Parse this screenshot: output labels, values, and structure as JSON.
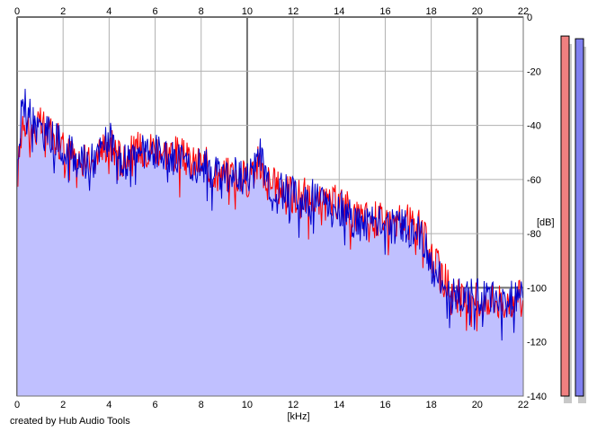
{
  "footer": {
    "credit": "created by Hub Audio Tools"
  },
  "colors": {
    "left_channel": "#ff0000",
    "right_channel": "#0000cc",
    "fill": "#c0c0ff",
    "grid": "#b0b0b0",
    "major_grid": "#707070",
    "meter_left": "#f08080",
    "meter_right": "#8080f0"
  },
  "chart_data": {
    "type": "line",
    "title": "",
    "xlabel": "[kHz]",
    "ylabel": "[dB]",
    "x_unit": "kHz",
    "y_unit": "dB",
    "xlim": [
      0,
      22
    ],
    "ylim": [
      -140,
      0
    ],
    "x_ticks": [
      "0",
      "2",
      "4",
      "6",
      "8",
      "10",
      "12",
      "14",
      "16",
      "18",
      "20",
      "22"
    ],
    "y_ticks": [
      "0",
      "-20",
      "-40",
      "-60",
      "-80",
      "-100",
      "-120",
      "-140"
    ],
    "grid": true,
    "legend": "none",
    "series": [
      {
        "channel": "left",
        "color": "#ff0000",
        "x": [
          0,
          0.25,
          0.5,
          0.75,
          1,
          1.5,
          2,
          2.5,
          3,
          3.5,
          4,
          4.5,
          5,
          5.5,
          6,
          6.5,
          7,
          7.5,
          8,
          8.5,
          9,
          9.5,
          10,
          10.5,
          11,
          11.5,
          12,
          12.5,
          13,
          13.5,
          14,
          14.5,
          15,
          15.5,
          16,
          16.5,
          17,
          17.5,
          18,
          18.5,
          19,
          19.5,
          20,
          20.5,
          21,
          21.5,
          22
        ],
        "y": [
          -60,
          -36,
          -40,
          -42,
          -40,
          -42,
          -48,
          -52,
          -54,
          -50,
          -46,
          -52,
          -50,
          -48,
          -48,
          -50,
          -50,
          -54,
          -54,
          -56,
          -58,
          -58,
          -60,
          -54,
          -62,
          -63,
          -66,
          -66,
          -68,
          -70,
          -68,
          -72,
          -74,
          -74,
          -74,
          -76,
          -76,
          -78,
          -88,
          -96,
          -102,
          -106,
          -104,
          -104,
          -105,
          -104,
          -104
        ]
      },
      {
        "channel": "right",
        "color": "#0000cc",
        "x": [
          0,
          0.25,
          0.5,
          0.75,
          1,
          1.5,
          2,
          2.5,
          3,
          3.5,
          4,
          4.5,
          5,
          5.5,
          6,
          6.5,
          7,
          7.5,
          8,
          8.5,
          9,
          9.5,
          10,
          10.5,
          11,
          11.5,
          12,
          12.5,
          13,
          13.5,
          14,
          14.5,
          15,
          15.5,
          16,
          16.5,
          17,
          17.5,
          18,
          18.5,
          19,
          19.5,
          20,
          20.5,
          21,
          21.5,
          22
        ],
        "y": [
          -58,
          -28,
          -36,
          -40,
          -42,
          -44,
          -48,
          -52,
          -54,
          -52,
          -44,
          -54,
          -52,
          -50,
          -50,
          -52,
          -52,
          -54,
          -55,
          -56,
          -58,
          -58,
          -60,
          -50,
          -62,
          -64,
          -66,
          -68,
          -66,
          -70,
          -68,
          -74,
          -76,
          -76,
          -76,
          -78,
          -78,
          -80,
          -92,
          -98,
          -102,
          -104,
          -103,
          -104,
          -105,
          -104,
          -103
        ]
      }
    ],
    "levels_db": {
      "left": -7,
      "right": -8
    }
  }
}
